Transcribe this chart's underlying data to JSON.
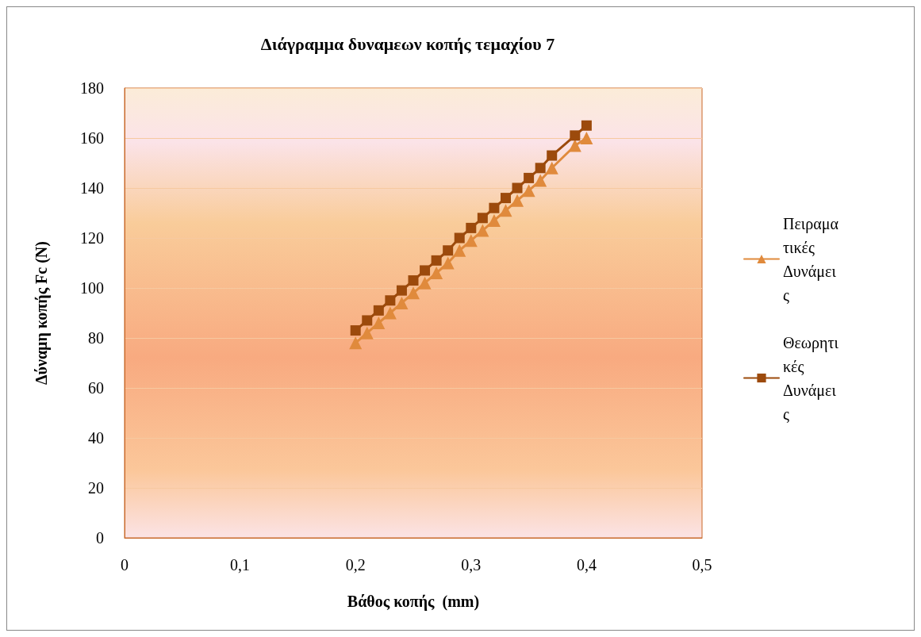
{
  "chart_data": {
    "type": "line",
    "title": "Διάγραμμα δυναμεων κοπής τεμαχίου 7",
    "xlabel": "Βάθος κοπής  (mm)",
    "ylabel": "Δύναμη κοπής Fc (N)",
    "x": [
      0.2,
      0.21,
      0.22,
      0.23,
      0.24,
      0.25,
      0.26,
      0.27,
      0.28,
      0.29,
      0.3,
      0.31,
      0.32,
      0.33,
      0.34,
      0.35,
      0.36,
      0.37,
      0.39,
      0.4
    ],
    "series": [
      {
        "name": "Πειραματικές Δυνάμεις",
        "color": "#e08a3c",
        "marker": "triangle",
        "values": [
          78,
          82,
          86,
          90,
          94,
          98,
          102,
          106,
          110,
          115,
          119,
          123,
          127,
          131,
          135,
          139,
          143,
          148,
          157,
          160
        ]
      },
      {
        "name": "Θεωρητικές Δυνάμεις",
        "color": "#9c4a0c",
        "marker": "square",
        "values": [
          83,
          87,
          91,
          95,
          99,
          103,
          107,
          111,
          115,
          120,
          124,
          128,
          132,
          136,
          140,
          144,
          148,
          153,
          161,
          165
        ]
      }
    ],
    "xlim": [
      0,
      0.5
    ],
    "xticks": [
      0,
      {
        "value": 0.1,
        "label": "0,1"
      },
      {
        "value": 0.2,
        "label": "0,2"
      },
      {
        "value": 0.3,
        "label": "0,3"
      },
      {
        "value": 0.4,
        "label": "0,4"
      },
      {
        "value": 0.5,
        "label": "0,5"
      }
    ],
    "ylim": [
      0,
      180
    ],
    "yticks": [
      0,
      20,
      40,
      60,
      80,
      100,
      120,
      140,
      160,
      180
    ],
    "grid": "y",
    "legend": "right",
    "line_style": "solid"
  }
}
